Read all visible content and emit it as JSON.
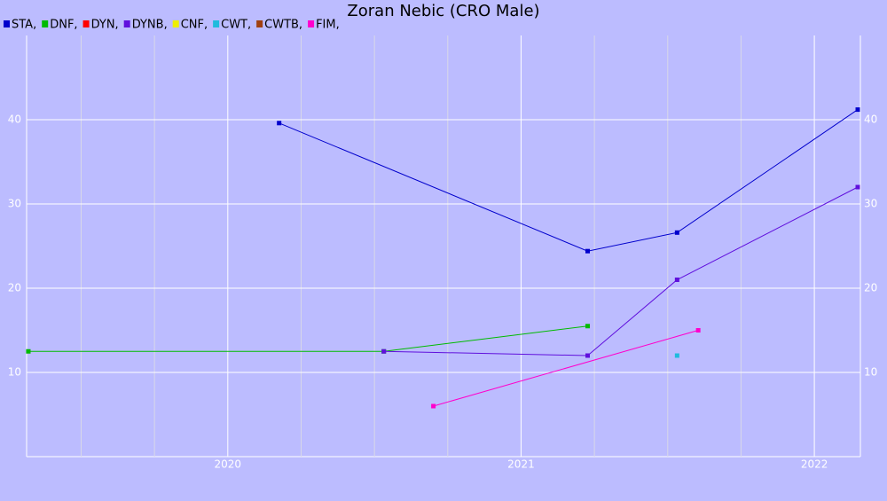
{
  "chart_data": {
    "type": "line",
    "title": "Zoran Nebic (CRO Male)",
    "xlim": [
      2019.314,
      2022.157
    ],
    "xticks": [
      2020,
      2021,
      2022
    ],
    "xminor_ticks": [
      2019.5,
      2019.75,
      2020.25,
      2020.5,
      2020.75,
      2021.25,
      2021.5,
      2021.75
    ],
    "ylim": [
      0,
      50
    ],
    "yticks": [
      10,
      20,
      30,
      40
    ],
    "grid": true,
    "series": [
      {
        "name": "STA,",
        "color": "#0000cc",
        "x": [
          2020.175,
          2021.227,
          2021.532,
          2022.148
        ],
        "values": [
          39.6,
          24.4,
          26.6,
          41.2
        ]
      },
      {
        "name": "DNF,",
        "color": "#00bb00",
        "x": [
          2019.32,
          2020.532,
          2021.227
        ],
        "values": [
          12.5,
          12.5,
          15.5
        ]
      },
      {
        "name": "DYN,",
        "color": "#ff0000",
        "x": [],
        "values": []
      },
      {
        "name": "DYNB,",
        "color": "#6010dd",
        "x": [
          2020.532,
          2021.227,
          2021.532,
          2022.148
        ],
        "values": [
          12.5,
          12.0,
          21.0,
          32.0
        ]
      },
      {
        "name": "CNF,",
        "color": "#eeee00",
        "x": [],
        "values": []
      },
      {
        "name": "CWT,",
        "color": "#20bbdd",
        "x": [
          2021.532
        ],
        "values": [
          12.0
        ]
      },
      {
        "name": "CWTB,",
        "color": "#a04010",
        "x": [],
        "values": []
      },
      {
        "name": "FIM,",
        "color": "#ff00cc",
        "x": [
          2020.701,
          2021.604
        ],
        "values": [
          6.0,
          15.0
        ]
      }
    ]
  }
}
